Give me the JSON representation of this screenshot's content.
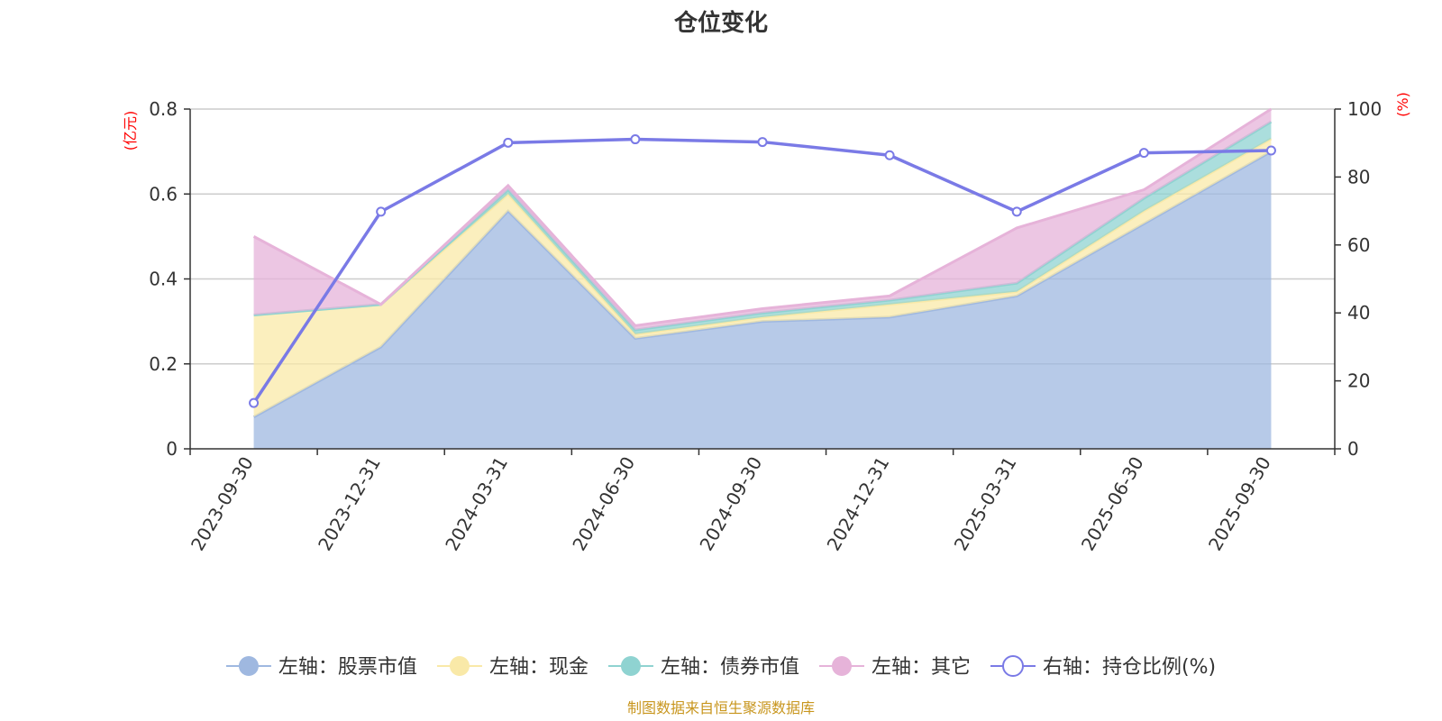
{
  "chart_data": {
    "type": "area",
    "title": "仓位变化",
    "categories": [
      "2023-09-30",
      "2023-12-31",
      "2024-03-31",
      "2024-06-30",
      "2024-09-30",
      "2024-12-31",
      "2025-03-31",
      "2025-06-30",
      "2025-09-30"
    ],
    "left_axis": {
      "unit": "(亿元)",
      "ylim": [
        0,
        0.8
      ],
      "ticks": [
        "0",
        "0.2",
        "0.4",
        "0.6",
        "0.8"
      ]
    },
    "right_axis": {
      "unit": "(%)",
      "ylim": [
        0,
        100
      ],
      "ticks": [
        "0",
        "20",
        "40",
        "60",
        "80",
        "100"
      ]
    },
    "stacked_series": [
      {
        "name": "左轴：股票市值",
        "color": "#9fb8e0",
        "values": [
          0.075,
          0.24,
          0.56,
          0.26,
          0.3,
          0.31,
          0.36,
          0.53,
          0.7
        ]
      },
      {
        "name": "左轴：现金",
        "color": "#f9e9a8",
        "values": [
          0.24,
          0.1,
          0.04,
          0.01,
          0.01,
          0.03,
          0.01,
          0.03,
          0.03
        ]
      },
      {
        "name": "左轴：债券市值",
        "color": "#8fd3d1",
        "values": [
          0.0,
          0.0,
          0.01,
          0.01,
          0.01,
          0.01,
          0.02,
          0.03,
          0.04
        ]
      },
      {
        "name": "左轴：其它",
        "color": "#e6b3d9",
        "values": [
          0.185,
          0.0,
          0.01,
          0.01,
          0.01,
          0.01,
          0.13,
          0.02,
          0.03
        ]
      }
    ],
    "line_series": {
      "name": "右轴：持仓比例(%)",
      "color": "#7a7ae6",
      "values": [
        13.5,
        69.8,
        90.1,
        91.1,
        90.3,
        86.4,
        69.8,
        87.1,
        87.8
      ]
    },
    "legend_position": "bottom",
    "grid": true
  },
  "footer": {
    "source": "制图数据来自恒生聚源数据库"
  }
}
